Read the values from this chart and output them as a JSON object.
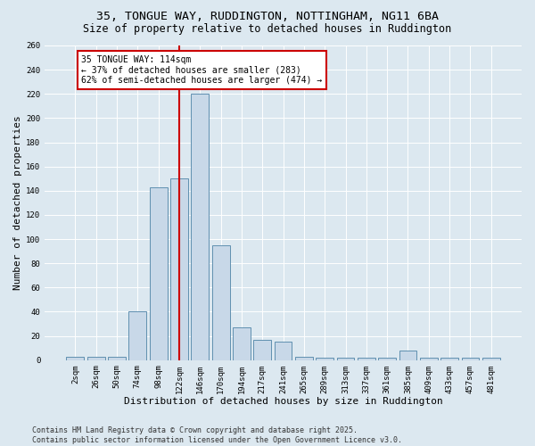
{
  "title_line1": "35, TONGUE WAY, RUDDINGTON, NOTTINGHAM, NG11 6BA",
  "title_line2": "Size of property relative to detached houses in Ruddington",
  "xlabel": "Distribution of detached houses by size in Ruddington",
  "ylabel": "Number of detached properties",
  "categories": [
    "2sqm",
    "26sqm",
    "50sqm",
    "74sqm",
    "98sqm",
    "122sqm",
    "146sqm",
    "170sqm",
    "194sqm",
    "217sqm",
    "241sqm",
    "265sqm",
    "289sqm",
    "313sqm",
    "337sqm",
    "361sqm",
    "385sqm",
    "409sqm",
    "433sqm",
    "457sqm",
    "481sqm"
  ],
  "values": [
    3,
    3,
    3,
    40,
    143,
    150,
    220,
    95,
    27,
    17,
    15,
    3,
    2,
    2,
    2,
    2,
    8,
    2,
    2,
    2,
    2
  ],
  "bar_color": "#c8d8e8",
  "bar_edge_color": "#6090b0",
  "vline_x": 5,
  "vline_color": "#cc0000",
  "annotation_title": "35 TONGUE WAY: 114sqm",
  "annotation_line2": "← 37% of detached houses are smaller (283)",
  "annotation_line3": "62% of semi-detached houses are larger (474) →",
  "annotation_box_color": "#cc0000",
  "annotation_text_color": "#000000",
  "annotation_bg": "#ffffff",
  "ylim": [
    0,
    260
  ],
  "yticks": [
    0,
    20,
    40,
    60,
    80,
    100,
    120,
    140,
    160,
    180,
    200,
    220,
    240,
    260
  ],
  "background_color": "#dce8f0",
  "plot_bg_color": "#dce8f0",
  "footer": "Contains HM Land Registry data © Crown copyright and database right 2025.\nContains public sector information licensed under the Open Government Licence v3.0.",
  "title_fontsize": 9.5,
  "subtitle_fontsize": 8.5,
  "axis_label_fontsize": 8,
  "tick_fontsize": 6.5,
  "annotation_fontsize": 7,
  "footer_fontsize": 6
}
